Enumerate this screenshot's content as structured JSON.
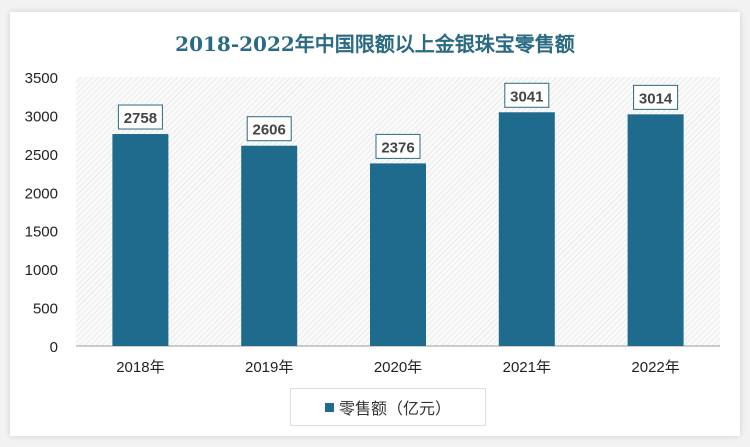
{
  "chart_data": {
    "type": "bar",
    "title": "2018-2022年中国限额以上金银珠宝零售额",
    "categories": [
      "2018年",
      "2019年",
      "2020年",
      "2021年",
      "2022年"
    ],
    "series": [
      {
        "name": "零售额（亿元）",
        "values": [
          2758,
          2606,
          2376,
          3041,
          3014
        ]
      }
    ],
    "data_labels": [
      "2758",
      "2606",
      "2376",
      "3041",
      "3014"
    ],
    "ylim": [
      0,
      3500
    ],
    "yticks": [
      "0",
      "500",
      "1000",
      "1500",
      "2000",
      "2500",
      "3000",
      "3500"
    ],
    "xlabel": "",
    "ylabel": "",
    "grid": false,
    "legend_position": "bottom",
    "colors": {
      "bar": "#1f6b8e",
      "title": "#2a6a82"
    }
  }
}
